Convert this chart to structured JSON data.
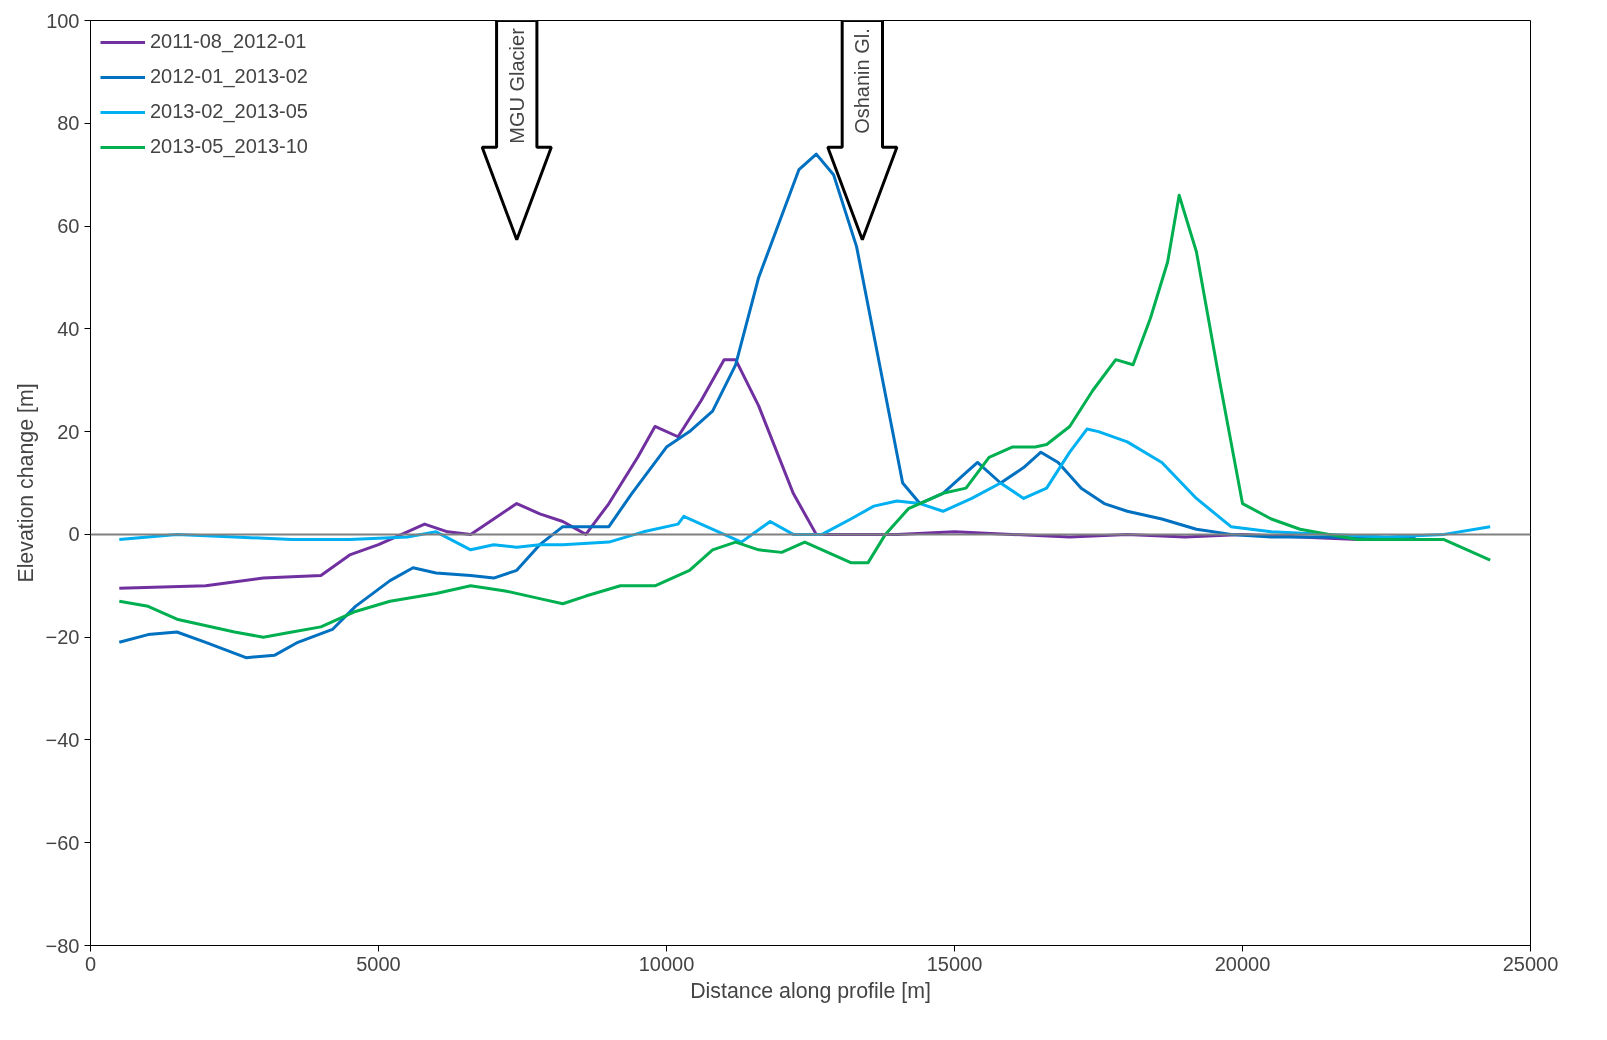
{
  "chart_data": {
    "type": "line",
    "xlabel": "Distance along profile [m]",
    "ylabel": "Elevation change [m]",
    "xlim": [
      0,
      25000
    ],
    "ylim": [
      -80,
      100
    ],
    "xticks": [
      0,
      5000,
      10000,
      15000,
      20000,
      25000
    ],
    "yticks": [
      -80,
      -60,
      -40,
      -20,
      0,
      20,
      40,
      60,
      80,
      100
    ],
    "grid": false,
    "legend": "top left",
    "marker": "none",
    "line_style": "solid",
    "ref_lines": [
      {
        "axis": "y",
        "value": 0,
        "color": "#808080"
      }
    ],
    "annotations": [
      "MGU Glacier",
      "Oshanin Gl."
    ],
    "series": [
      {
        "name": "2011-08_2012-01",
        "color": "#7030a0",
        "x": [
          500,
          2000,
          3000,
          4000,
          4500,
          5000,
          5500,
          5800,
          6200,
          6600,
          7000,
          7400,
          7800,
          8200,
          8600,
          9000,
          9500,
          9800,
          10200,
          10600,
          11000,
          11200,
          11600,
          12200,
          12600,
          13000,
          14000,
          15000,
          16000,
          17000,
          18000,
          19000,
          20000,
          21000,
          22000,
          23000
        ],
        "values": [
          -10.5,
          -10,
          -8.5,
          -8,
          -4,
          -2,
          0.5,
          2,
          0.5,
          0,
          3,
          6,
          4,
          2.5,
          0,
          6,
          15,
          21,
          19,
          26,
          34,
          34,
          25,
          8,
          0,
          0,
          0,
          0.5,
          0,
          -0.5,
          0,
          -0.5,
          0,
          -0.5,
          -1,
          -0.5
        ]
      },
      {
        "name": "2012-01_2013-02",
        "color": "#0070c0",
        "x": [
          500,
          1000,
          1500,
          2000,
          2700,
          3200,
          3600,
          4200,
          4600,
          5200,
          5600,
          6000,
          6600,
          7000,
          7400,
          7800,
          8200,
          8600,
          9000,
          9400,
          10000,
          10400,
          10800,
          11200,
          11600,
          12000,
          12300,
          12600,
          12900,
          13300,
          13700,
          14100,
          14400,
          14800,
          15200,
          15400,
          15800,
          16200,
          16500,
          16800,
          17200,
          17600,
          18000,
          18600,
          19200,
          19800,
          20500,
          21500,
          22500,
          23000
        ],
        "values": [
          -21,
          -19.5,
          -19,
          -21,
          -24,
          -23.5,
          -21,
          -18.5,
          -14,
          -9,
          -6.5,
          -7.5,
          -8,
          -8.5,
          -7,
          -2,
          1.5,
          1.5,
          1.5,
          8,
          17,
          20,
          24,
          33,
          50,
          62,
          71,
          74,
          70,
          56,
          33,
          10,
          6,
          8,
          12,
          14,
          10,
          13,
          16,
          14,
          9,
          6,
          4.5,
          3,
          1,
          0,
          -0.5,
          -0.5,
          -1,
          -0.5
        ]
      },
      {
        "name": "2013-02_2013-05",
        "color": "#00b0f0",
        "x": [
          500,
          1500,
          2500,
          3500,
          4500,
          5500,
          6000,
          6600,
          7000,
          7400,
          7800,
          8200,
          9000,
          9600,
          10200,
          10300,
          10600,
          11000,
          11300,
          11800,
          12200,
          12700,
          13200,
          13600,
          14000,
          14400,
          14800,
          15300,
          15800,
          16200,
          16600,
          17000,
          17300,
          17500,
          18000,
          18600,
          19200,
          19800,
          20500,
          21500,
          22500,
          23500,
          24300
        ],
        "values": [
          -1,
          0,
          -0.5,
          -1,
          -1,
          -0.5,
          0.5,
          -3,
          -2,
          -2.5,
          -2,
          -2,
          -1.5,
          0.5,
          2,
          3.5,
          2,
          0,
          -1.5,
          2.5,
          0,
          0,
          3,
          5.5,
          6.5,
          6,
          4.5,
          7,
          10,
          7,
          9,
          16,
          20.5,
          20,
          18,
          14,
          7,
          1.5,
          0.5,
          0,
          -0.5,
          0,
          1.5
        ]
      },
      {
        "name": "2013-05_2013-10",
        "color": "#00b050",
        "x": [
          500,
          1000,
          1500,
          2500,
          3000,
          3500,
          4000,
          4600,
          5200,
          6000,
          6600,
          7200,
          7800,
          8200,
          8600,
          9200,
          9800,
          10400,
          10800,
          11200,
          11600,
          12000,
          12400,
          12800,
          13200,
          13500,
          13800,
          14200,
          14800,
          15200,
          15600,
          16000,
          16400,
          16600,
          17000,
          17400,
          17800,
          18100,
          18400,
          18700,
          18900,
          19200,
          19600,
          20000,
          20500,
          21000,
          21500,
          22000,
          22500,
          23500,
          24300
        ],
        "values": [
          -13,
          -14,
          -16.5,
          -19,
          -20,
          -19,
          -18,
          -15,
          -13,
          -11.5,
          -10,
          -11,
          -12.5,
          -13.5,
          -12,
          -10,
          -10,
          -7,
          -3,
          -1.5,
          -3,
          -3.5,
          -1.5,
          -3.5,
          -5.5,
          -5.5,
          0,
          5,
          8,
          9,
          15,
          17,
          17,
          17.5,
          21,
          28,
          34,
          33,
          42,
          53,
          66,
          55,
          30,
          6,
          3,
          1,
          0,
          -1,
          -1,
          -1,
          -5
        ]
      }
    ]
  }
}
